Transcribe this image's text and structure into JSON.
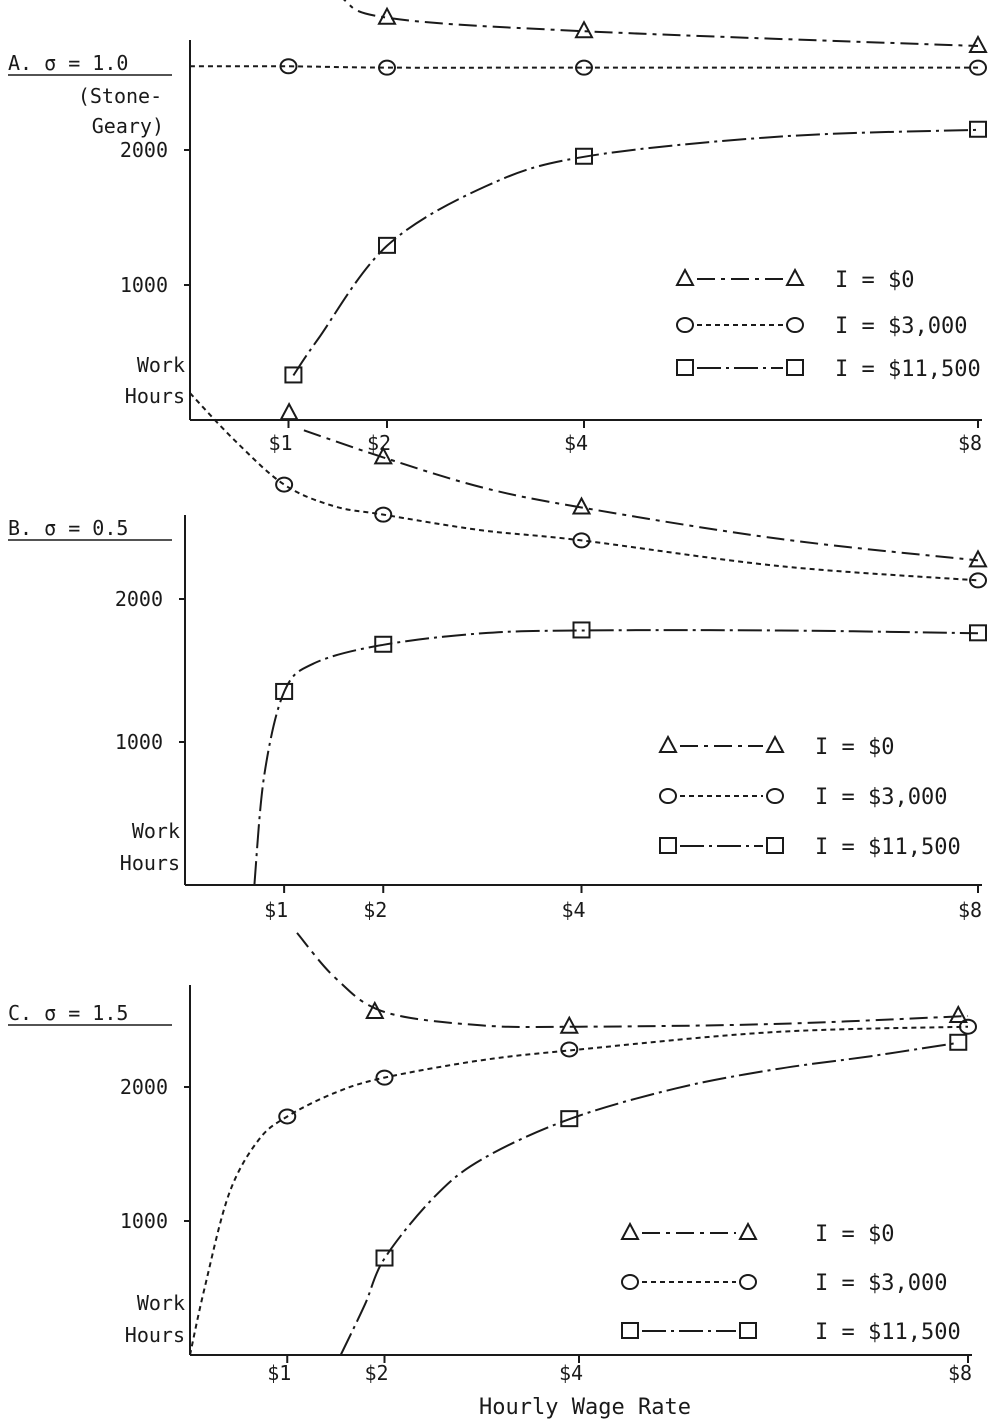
{
  "x_axis_label": "Hourly Wage Rate",
  "styles": {
    "ink": "#1a1a1a",
    "series_dash": {
      "I0": "18 6 4 6",
      "I3000": "5 4",
      "I11500": "24 5 3 5"
    }
  },
  "chart_data": [
    {
      "type": "line",
      "panel_label": "A. σ = 1.0",
      "panel_sublabel": [
        "(Stone-",
        "Geary)"
      ],
      "ylabel": [
        "Work",
        "Hours"
      ],
      "yticks": [
        {
          "value": 1000,
          "label": "1000"
        },
        {
          "value": 2000,
          "label": "2000"
        }
      ],
      "xticks": [
        {
          "value": 1,
          "label": "$1"
        },
        {
          "value": 2,
          "label": "$2"
        },
        {
          "value": 4,
          "label": "$4"
        },
        {
          "value": 8,
          "label": "$8"
        }
      ],
      "xlim": [
        0,
        8
      ],
      "ylim": [
        0,
        3300
      ],
      "legend_position": "right",
      "series": [
        {
          "key": "I0",
          "marker": "triangle",
          "legend_label": "I = $0",
          "curve_x": [
            0.92,
            1.5,
            2.0,
            4.0,
            8.0
          ],
          "curve_y": [
            3520,
            3150,
            2980,
            2880,
            2770
          ],
          "points_x": [
            2.0,
            4.0,
            8.0
          ],
          "points_y": [
            2980,
            2880,
            2770
          ]
        },
        {
          "key": "I3000",
          "marker": "circle",
          "legend_label": "I = $3,000",
          "curve_x": [
            0.0,
            1.0,
            2.0,
            4.0,
            8.0
          ],
          "curve_y": [
            2620,
            2620,
            2610,
            2610,
            2610
          ],
          "points_x": [
            1.0,
            2.0,
            4.0,
            8.0
          ],
          "points_y": [
            2620,
            2610,
            2610,
            2610
          ]
        },
        {
          "key": "I11500",
          "marker": "square",
          "legend_label": "I = $11,500",
          "curve_x": [
            1.05,
            1.3,
            2.0,
            3.0,
            4.0,
            6.0,
            8.0
          ],
          "curve_y": [
            330,
            600,
            1290,
            1730,
            1950,
            2100,
            2150
          ],
          "points_x": [
            1.05,
            2.0,
            4.0,
            8.0
          ],
          "points_y": [
            330,
            1290,
            1950,
            2150
          ]
        }
      ]
    },
    {
      "type": "line",
      "panel_label": "B. σ = 0.5",
      "panel_sublabel": [],
      "ylabel": [
        "Work",
        "Hours"
      ],
      "yticks": [
        {
          "value": 1000,
          "label": "1000"
        },
        {
          "value": 2000,
          "label": "2000"
        }
      ],
      "xticks": [
        {
          "value": 1,
          "label": "$1"
        },
        {
          "value": 2,
          "label": "$2"
        },
        {
          "value": 4,
          "label": "$4"
        },
        {
          "value": 8,
          "label": "$8"
        }
      ],
      "xlim": [
        0,
        8
      ],
      "ylim": [
        0,
        3500
      ],
      "legend_position": "right",
      "series": [
        {
          "key": "I0",
          "marker": "triangle",
          "legend_label": "I = $0",
          "curve_x": [
            1.2,
            2.0,
            3.0,
            4.0,
            6.0,
            8.0
          ],
          "curve_y": [
            3180,
            2990,
            2780,
            2640,
            2420,
            2270
          ],
          "points_x": [
            1.05,
            2.0,
            4.0,
            8.0
          ],
          "points_y": [
            3300,
            2990,
            2640,
            2270
          ]
        },
        {
          "key": "I3000",
          "marker": "circle",
          "legend_label": "I = $3,000",
          "curve_x": [
            0.05,
            0.5,
            1.0,
            1.5,
            2.0,
            3.0,
            4.0,
            6.0,
            8.0
          ],
          "curve_y": [
            3440,
            3110,
            2800,
            2650,
            2590,
            2480,
            2410,
            2230,
            2130
          ],
          "points_x": [
            1.0,
            2.0,
            4.0,
            8.0
          ],
          "points_y": [
            2800,
            2590,
            2410,
            2130
          ]
        },
        {
          "key": "I11500",
          "marker": "square",
          "legend_label": "I = $11,500",
          "curve_x": [
            0.7,
            0.8,
            1.0,
            1.3,
            2.0,
            3.0,
            4.0,
            6.0,
            8.0
          ],
          "curve_y": [
            0,
            770,
            1350,
            1550,
            1680,
            1760,
            1780,
            1780,
            1760
          ],
          "points_x": [
            1.0,
            2.0,
            4.0,
            8.0
          ],
          "points_y": [
            1350,
            1680,
            1780,
            1760
          ]
        }
      ]
    },
    {
      "type": "line",
      "panel_label": "C. σ = 1.5",
      "panel_sublabel": [],
      "ylabel": [
        "Work",
        "Hours"
      ],
      "yticks": [
        {
          "value": 1000,
          "label": "1000"
        },
        {
          "value": 2000,
          "label": "2000"
        }
      ],
      "xticks": [
        {
          "value": 1,
          "label": "$1"
        },
        {
          "value": 2,
          "label": "$2"
        },
        {
          "value": 4,
          "label": "$4"
        },
        {
          "value": 8,
          "label": "$8"
        }
      ],
      "xlim": [
        0,
        8
      ],
      "ylim": [
        0,
        3200
      ],
      "legend_position": "right",
      "series": [
        {
          "key": "I0",
          "marker": "triangle",
          "legend_label": "I = $0",
          "curve_x": [
            1.1,
            1.5,
            2.0,
            3.0,
            4.0,
            6.0,
            8.0
          ],
          "curve_y": [
            3150,
            2810,
            2560,
            2460,
            2450,
            2470,
            2530
          ],
          "points_x": [
            1.9,
            3.9,
            7.9
          ],
          "points_y": [
            2560,
            2450,
            2530
          ]
        },
        {
          "key": "I3000",
          "marker": "circle",
          "legend_label": "I = $3,000",
          "curve_x": [
            0.0,
            0.15,
            0.4,
            0.7,
            1.0,
            1.5,
            2.0,
            3.0,
            4.0,
            6.0,
            8.0
          ],
          "curve_y": [
            0,
            500,
            1200,
            1600,
            1780,
            1960,
            2070,
            2200,
            2280,
            2410,
            2450
          ],
          "points_x": [
            1.0,
            2.0,
            3.9,
            8.0
          ],
          "points_y": [
            1780,
            2070,
            2280,
            2450
          ]
        },
        {
          "key": "I11500",
          "marker": "square",
          "legend_label": "I = $11,500",
          "curve_x": [
            1.55,
            1.8,
            2.0,
            2.5,
            3.0,
            3.9,
            5.0,
            6.0,
            7.0,
            7.9
          ],
          "curve_y": [
            0,
            380,
            720,
            1170,
            1460,
            1760,
            1990,
            2130,
            2230,
            2330
          ],
          "points_x": [
            2.0,
            3.9,
            7.9
          ],
          "points_y": [
            720,
            1760,
            2330
          ]
        }
      ]
    }
  ]
}
